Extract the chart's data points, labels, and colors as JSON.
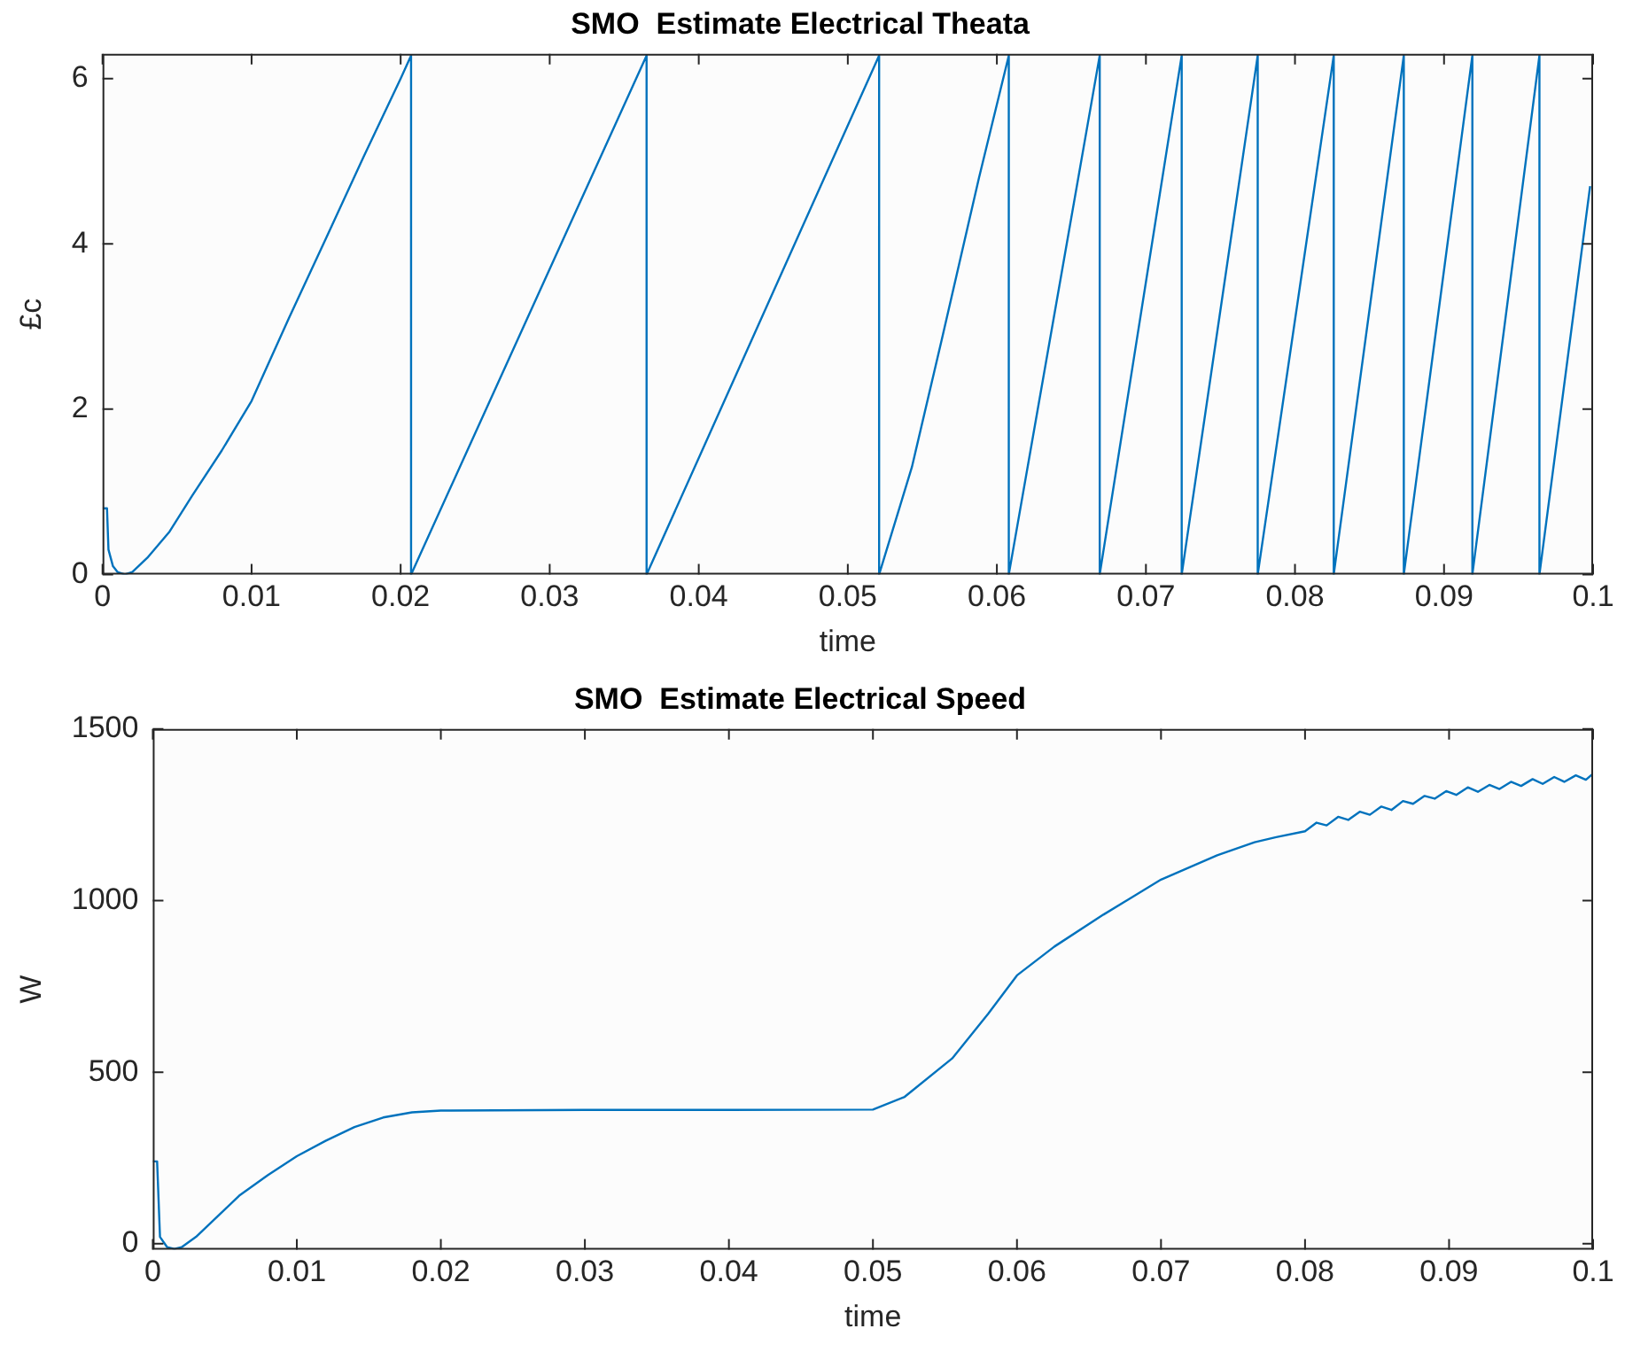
{
  "chart_data": [
    {
      "type": "line",
      "title": "SMO  Estimate Electrical Theata",
      "xlabel": "time",
      "ylabel": "£c",
      "color": "#0072bd",
      "x": [
        0,
        0.0003,
        0.0004,
        0.0007,
        0.001,
        0.0015,
        0.002,
        0.003,
        0.0045,
        0.006,
        0.008,
        0.01,
        0.0125,
        0.015,
        0.0175,
        0.02,
        0.0207,
        0.0207,
        0.0365,
        0.0365,
        0.0521,
        0.0521,
        0.0543,
        0.0563,
        0.0588,
        0.0608,
        0.0608,
        0.0669,
        0.0669,
        0.0724,
        0.0724,
        0.0775,
        0.0775,
        0.0826,
        0.0826,
        0.0873,
        0.0873,
        0.0919,
        0.0919,
        0.0964,
        0.0964,
        0.0998
      ],
      "values": [
        0.8,
        0.8,
        0.3,
        0.1,
        0.03,
        0,
        0.03,
        0.2,
        0.52,
        0.95,
        1.5,
        2.1,
        3.1,
        4.07,
        5.05,
        6.0,
        6.28,
        0,
        6.28,
        0,
        6.28,
        0,
        1.3,
        2.84,
        4.8,
        6.28,
        0,
        6.28,
        0,
        6.28,
        0,
        6.28,
        0,
        6.28,
        0,
        6.28,
        0,
        6.28,
        0,
        6.28,
        0,
        4.7
      ],
      "xlim": [
        0,
        0.1
      ],
      "ylim": [
        0,
        6.3
      ],
      "xticks": [
        0,
        0.01,
        0.02,
        0.03,
        0.04,
        0.05,
        0.06,
        0.07,
        0.08,
        0.09,
        0.1
      ],
      "yticks": [
        0,
        2,
        4,
        6
      ]
    },
    {
      "type": "line",
      "title": "SMO  Estimate Electrical Speed",
      "xlabel": "time",
      "ylabel": "W",
      "color": "#0072bd",
      "x": [
        0,
        0.0003,
        0.0005,
        0.001,
        0.0015,
        0.002,
        0.003,
        0.004,
        0.005,
        0.006,
        0.008,
        0.01,
        0.012,
        0.014,
        0.016,
        0.018,
        0.02,
        0.03,
        0.04,
        0.05,
        0.0522,
        0.0555,
        0.058,
        0.06,
        0.0626,
        0.066,
        0.07,
        0.0739,
        0.075,
        0.0765,
        0.078,
        0.08,
        0.0808,
        0.0815,
        0.0823,
        0.083,
        0.0838,
        0.0845,
        0.0853,
        0.086,
        0.0868,
        0.0875,
        0.0883,
        0.089,
        0.0898,
        0.0905,
        0.0913,
        0.092,
        0.0928,
        0.0935,
        0.0943,
        0.095,
        0.0958,
        0.0965,
        0.0973,
        0.098,
        0.0988,
        0.0995,
        0.1
      ],
      "values": [
        240,
        240,
        20,
        -10,
        -15,
        -10,
        20,
        60,
        100,
        140,
        200,
        255,
        300,
        340,
        368,
        383,
        388,
        390,
        390,
        391,
        428,
        540,
        670,
        782,
        866,
        959,
        1061,
        1132,
        1148,
        1170,
        1185,
        1202,
        1227,
        1219,
        1244,
        1235,
        1259,
        1250,
        1274,
        1264,
        1290,
        1282,
        1305,
        1297,
        1319,
        1308,
        1330,
        1317,
        1337,
        1325,
        1346,
        1334,
        1354,
        1340,
        1360,
        1346,
        1365,
        1352,
        1370
      ],
      "xlim": [
        0,
        0.1
      ],
      "ylim": [
        -17,
        1500
      ],
      "xticks": [
        0,
        0.01,
        0.02,
        0.03,
        0.04,
        0.05,
        0.06,
        0.07,
        0.08,
        0.09,
        0.1
      ],
      "yticks": [
        0,
        500,
        1000,
        1500
      ]
    }
  ]
}
